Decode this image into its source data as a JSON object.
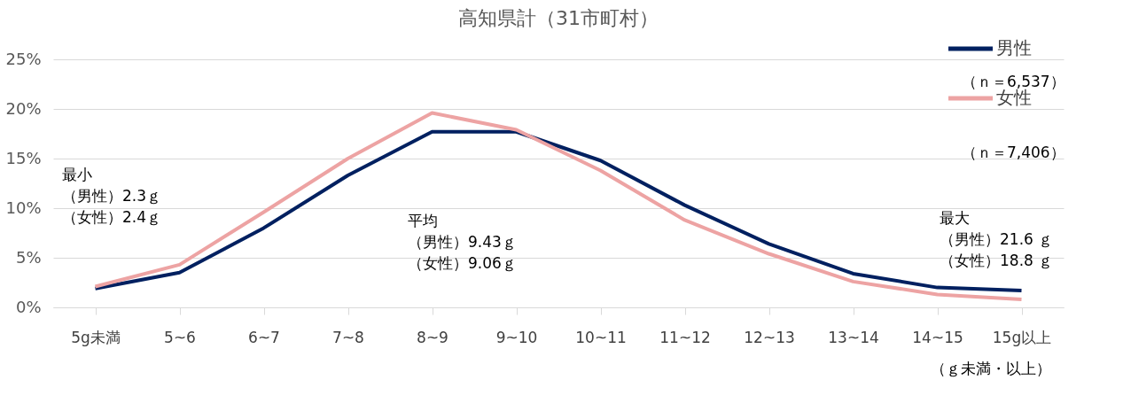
{
  "chart_data": {
    "type": "line",
    "title": "高知県計（31市町村）",
    "categories": [
      "5g未満",
      "5~6",
      "6~7",
      "7~8",
      "8~9",
      "9~10",
      "10~11",
      "11~12",
      "12~13",
      "13~14",
      "14~15",
      "15g以上"
    ],
    "series": [
      {
        "name": "男性",
        "color": "#002060",
        "values": [
          1.9,
          3.5,
          8.0,
          13.3,
          17.7,
          17.7,
          14.8,
          10.3,
          6.4,
          3.4,
          2.0,
          1.7
        ]
      },
      {
        "name": "女性",
        "color": "#eda3a3",
        "values": [
          2.1,
          4.3,
          9.6,
          15.0,
          19.6,
          17.9,
          13.8,
          8.8,
          5.4,
          2.6,
          1.3,
          0.8
        ]
      }
    ],
    "ylim": [
      0,
      25
    ],
    "yticks": [
      {
        "value": 0,
        "label": "0%"
      },
      {
        "value": 5,
        "label": "5%"
      },
      {
        "value": 10,
        "label": "10%"
      },
      {
        "value": 15,
        "label": "15%"
      },
      {
        "value": 20,
        "label": "20%"
      },
      {
        "value": 25,
        "label": "25%"
      }
    ],
    "grid": "y",
    "legend": "top right",
    "marker": "none",
    "line_style": "solid",
    "annotations": [
      "（ｎ＝6,537）",
      "（ｎ＝7,406）",
      "最小",
      "（男性）2.3ｇ",
      "（女性）2.4ｇ",
      "平均",
      "（男性）9.43ｇ",
      "（女性）9.06ｇ",
      "最大",
      "（男性）21.6 ｇ",
      "（女性）18.8 ｇ",
      "（ｇ未満・以上）"
    ]
  }
}
